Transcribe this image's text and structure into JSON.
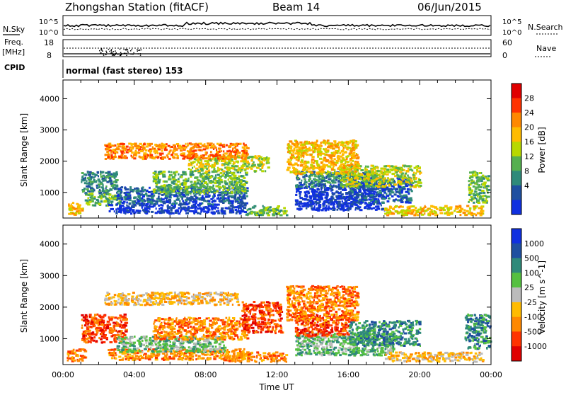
{
  "header": {
    "station": "Zhongshan Station (fitACF)",
    "beam": "Beam 14",
    "date": "06/Jun/2015"
  },
  "top_panel": {
    "left_label": "N.Sky",
    "left_ticks": [
      "10^5",
      "10^0"
    ],
    "right_ticks": [
      "10^5",
      "10^0"
    ],
    "right_label": "N.Search"
  },
  "freq_panel": {
    "label_line1": "Freq.",
    "label_line2": "[MHz]",
    "left_ticks": [
      "18",
      "8"
    ],
    "right_ticks": [
      "60",
      "0"
    ],
    "right_label": "Nave"
  },
  "cpid_panel": {
    "label": "CPID",
    "program": "normal (fast stereo) 153"
  },
  "chart_data": [
    {
      "type": "heatmap",
      "name": "power",
      "ylabel": "Slant Range [km]",
      "xlabel": "",
      "xlim": [
        0,
        24
      ],
      "ylim": [
        180,
        4600
      ],
      "yticks": [
        1000,
        2000,
        3000,
        4000
      ],
      "colorbar": {
        "label": "Power [dB]",
        "ticks": [
          "28",
          "24",
          "20",
          "16",
          "12",
          "8",
          "4"
        ],
        "colors": [
          "#e00000",
          "#ff3300",
          "#ff8800",
          "#ffbb00",
          "#b8d800",
          "#55b050",
          "#2f8a7a",
          "#1f4fa0",
          "#1030e0"
        ]
      },
      "regions": [
        {
          "t0": 0.2,
          "t1": 1.1,
          "r0": 300,
          "r1": 700,
          "level": 3
        },
        {
          "t0": 1.0,
          "t1": 3.0,
          "r0": 1000,
          "r1": 1700,
          "level": 6
        },
        {
          "t0": 1.2,
          "t1": 3.2,
          "r0": 600,
          "r1": 1000,
          "level": 5
        },
        {
          "t0": 2.5,
          "t1": 10.2,
          "r0": 350,
          "r1": 650,
          "level": 8
        },
        {
          "t0": 3.0,
          "t1": 10.3,
          "r0": 650,
          "r1": 1200,
          "level": 7
        },
        {
          "t0": 5.0,
          "t1": 10.3,
          "r0": 1000,
          "r1": 1700,
          "level": 5
        },
        {
          "t0": 7.0,
          "t1": 11.5,
          "r0": 1700,
          "r1": 2200,
          "level": 4
        },
        {
          "t0": 10.2,
          "t1": 12.5,
          "r0": 300,
          "r1": 600,
          "level": 5
        },
        {
          "t0": 2.3,
          "t1": 10.3,
          "r0": 2100,
          "r1": 2600,
          "level": 2
        },
        {
          "t0": 13.0,
          "t1": 18.0,
          "r0": 450,
          "r1": 1300,
          "level": 8
        },
        {
          "t0": 13.0,
          "t1": 17.5,
          "r0": 1200,
          "r1": 1700,
          "level": 6
        },
        {
          "t0": 16.0,
          "t1": 19.5,
          "r0": 700,
          "r1": 1500,
          "level": 7
        },
        {
          "t0": 15.5,
          "t1": 20.0,
          "r0": 1200,
          "r1": 1900,
          "level": 4
        },
        {
          "t0": 12.5,
          "t1": 16.5,
          "r0": 1600,
          "r1": 2700,
          "level": 3
        },
        {
          "t0": 18.0,
          "t1": 23.5,
          "r0": 300,
          "r1": 600,
          "level": 3
        },
        {
          "t0": 22.7,
          "t1": 23.8,
          "r0": 700,
          "r1": 1700,
          "level": 5
        }
      ]
    },
    {
      "type": "heatmap",
      "name": "velocity",
      "ylabel": "Slant Range [km]",
      "xlabel": "Time UT",
      "xlim": [
        0,
        24
      ],
      "ylim": [
        180,
        4600
      ],
      "xticks": [
        "00:00",
        "04:00",
        "08:00",
        "12:00",
        "16:00",
        "20:00",
        "00:00"
      ],
      "yticks": [
        1000,
        2000,
        3000,
        4000
      ],
      "colorbar": {
        "label": "Velocity [m s^-1]",
        "ticks": [
          "1000",
          "500",
          "100",
          "25",
          "-25",
          "-100",
          "-500",
          "-1000"
        ],
        "colors": [
          "#1030e0",
          "#1f4fa0",
          "#2f8a7a",
          "#55c040",
          "#bbbbbb",
          "#ffbb00",
          "#ff8800",
          "#ff3300",
          "#e00000"
        ]
      },
      "regions": [
        {
          "t0": 0.2,
          "t1": 1.2,
          "r0": 300,
          "r1": 700,
          "level": 6
        },
        {
          "t0": 1.0,
          "t1": 3.5,
          "r0": 900,
          "r1": 1800,
          "level": 7
        },
        {
          "t0": 2.5,
          "t1": 10.3,
          "r0": 350,
          "r1": 700,
          "level": 6
        },
        {
          "t0": 3.0,
          "t1": 9.0,
          "r0": 600,
          "r1": 1100,
          "level": 3
        },
        {
          "t0": 5.0,
          "t1": 10.3,
          "r0": 1000,
          "r1": 1700,
          "level": 6
        },
        {
          "t0": 9.0,
          "t1": 12.5,
          "r0": 300,
          "r1": 600,
          "level": 6
        },
        {
          "t0": 10.0,
          "t1": 12.2,
          "r0": 1200,
          "r1": 2200,
          "level": 7
        },
        {
          "t0": 2.3,
          "t1": 9.8,
          "r0": 2100,
          "r1": 2500,
          "level": 5
        },
        {
          "t0": 13.0,
          "t1": 18.5,
          "r0": 500,
          "r1": 1200,
          "level": 3
        },
        {
          "t0": 13.0,
          "t1": 16.0,
          "r0": 1100,
          "r1": 1800,
          "level": 7
        },
        {
          "t0": 16.0,
          "t1": 20.0,
          "r0": 800,
          "r1": 1600,
          "level": 2
        },
        {
          "t0": 12.5,
          "t1": 16.5,
          "r0": 1600,
          "r1": 2700,
          "level": 6
        },
        {
          "t0": 18.0,
          "t1": 23.5,
          "r0": 300,
          "r1": 600,
          "level": 5
        },
        {
          "t0": 22.5,
          "t1": 23.9,
          "r0": 700,
          "r1": 1800,
          "level": 2
        }
      ]
    }
  ]
}
